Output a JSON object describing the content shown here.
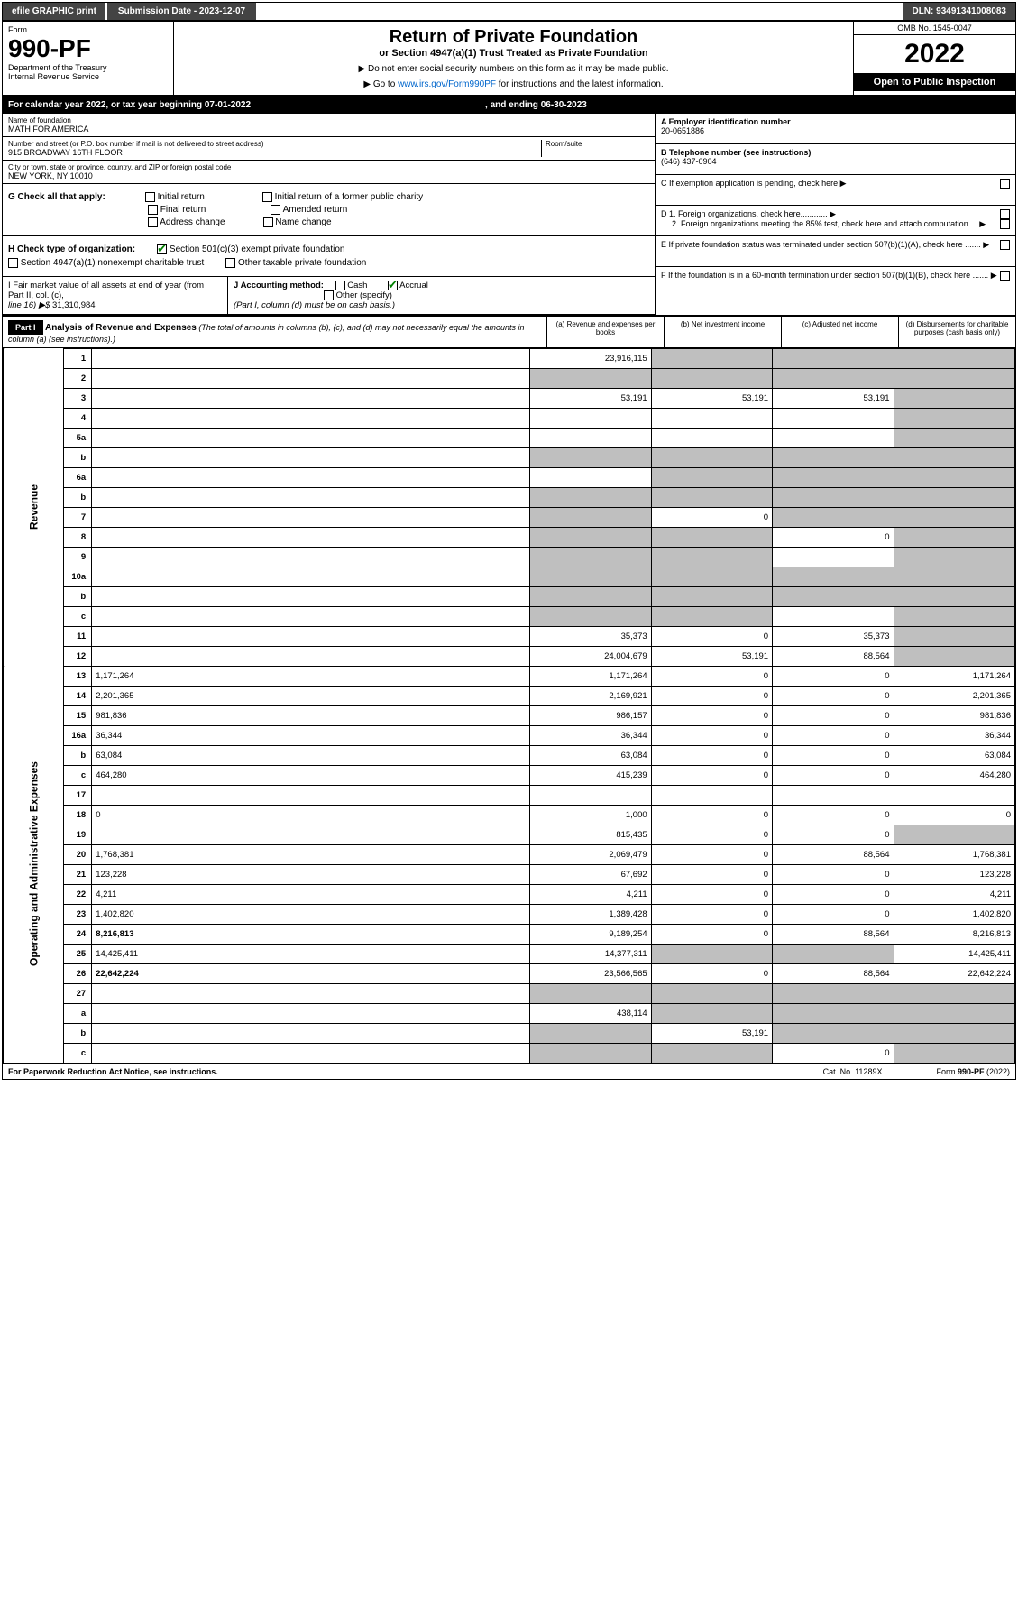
{
  "topbar": {
    "efile": "efile GRAPHIC print",
    "submission_label": "Submission Date - 2023-12-07",
    "dln": "DLN: 93491341008083"
  },
  "header": {
    "form_label": "Form",
    "form_number": "990-PF",
    "dept1": "Department of the Treasury",
    "dept2": "Internal Revenue Service",
    "title": "Return of Private Foundation",
    "subtitle": "or Section 4947(a)(1) Trust Treated as Private Foundation",
    "note1": "▶ Do not enter social security numbers on this form as it may be made public.",
    "note2_pre": "▶ Go to ",
    "note2_link": "www.irs.gov/Form990PF",
    "note2_post": " for instructions and the latest information.",
    "omb": "OMB No. 1545-0047",
    "year": "2022",
    "open": "Open to Public Inspection"
  },
  "calrow": {
    "text1": "For calendar year 2022, or tax year beginning 07-01-2022",
    "text2": ", and ending 06-30-2023"
  },
  "info": {
    "name_lbl": "Name of foundation",
    "name_val": "MATH FOR AMERICA",
    "addr_lbl": "Number and street (or P.O. box number if mail is not delivered to street address)",
    "addr_val": "915 BROADWAY 16TH FLOOR",
    "room_lbl": "Room/suite",
    "city_lbl": "City or town, state or province, country, and ZIP or foreign postal code",
    "city_val": "NEW YORK, NY  10010",
    "ein_lbl": "A Employer identification number",
    "ein_val": "20-0651886",
    "tel_lbl": "B Telephone number (see instructions)",
    "tel_val": "(646) 437-0904",
    "c_lbl": "C If exemption application is pending, check here",
    "d1_lbl": "D 1. Foreign organizations, check here............",
    "d2_lbl": "2. Foreign organizations meeting the 85% test, check here and attach computation ...",
    "e_lbl": "E If private foundation status was terminated under section 507(b)(1)(A), check here .......",
    "f_lbl": "F If the foundation is in a 60-month termination under section 507(b)(1)(B), check here .......",
    "g_lbl": "G Check all that apply:",
    "g_opts": [
      "Initial return",
      "Final return",
      "Address change",
      "Initial return of a former public charity",
      "Amended return",
      "Name change"
    ],
    "h_lbl": "H Check type of organization:",
    "h_opt1": "Section 501(c)(3) exempt private foundation",
    "h_opt2": "Section 4947(a)(1) nonexempt charitable trust",
    "h_opt3": "Other taxable private foundation",
    "i_lbl": "I Fair market value of all assets at end of year (from Part II, col. (c),",
    "i_line": "line 16) ▶$ ",
    "i_val": "31,310,984",
    "j_lbl": "J Accounting method:",
    "j_cash": "Cash",
    "j_accrual": "Accrual",
    "j_other": "Other (specify)",
    "j_note": "(Part I, column (d) must be on cash basis.)"
  },
  "part1": {
    "hdr": "Part I",
    "title": "Analysis of Revenue and Expenses",
    "note": " (The total of amounts in columns (b), (c), and (d) may not necessarily equal the amounts in column (a) (see instructions).)",
    "col_a": "(a) Revenue and expenses per books",
    "col_b": "(b) Net investment income",
    "col_c": "(c) Adjusted net income",
    "col_d": "(d) Disbursements for charitable purposes (cash basis only)"
  },
  "sections": {
    "revenue": "Revenue",
    "expenses": "Operating and Administrative Expenses"
  },
  "rows": [
    {
      "n": "1",
      "d": "",
      "a": "23,916,115",
      "b": "",
      "c": "",
      "grey": [
        "b",
        "c",
        "d"
      ]
    },
    {
      "n": "2",
      "d": "",
      "a": "",
      "b": "",
      "c": "",
      "grey": [
        "a",
        "b",
        "c",
        "d"
      ]
    },
    {
      "n": "3",
      "d": "",
      "a": "53,191",
      "b": "53,191",
      "c": "53,191",
      "grey": [
        "d"
      ]
    },
    {
      "n": "4",
      "d": "",
      "a": "",
      "b": "",
      "c": "",
      "grey": [
        "d"
      ]
    },
    {
      "n": "5a",
      "d": "",
      "a": "",
      "b": "",
      "c": "",
      "grey": [
        "d"
      ]
    },
    {
      "n": "b",
      "d": "",
      "a": "",
      "b": "",
      "c": "",
      "grey": [
        "a",
        "b",
        "c",
        "d"
      ]
    },
    {
      "n": "6a",
      "d": "",
      "a": "",
      "b": "",
      "c": "",
      "grey": [
        "b",
        "c",
        "d"
      ]
    },
    {
      "n": "b",
      "d": "",
      "a": "",
      "b": "",
      "c": "",
      "grey": [
        "a",
        "b",
        "c",
        "d"
      ]
    },
    {
      "n": "7",
      "d": "",
      "a": "",
      "b": "0",
      "c": "",
      "grey": [
        "a",
        "c",
        "d"
      ]
    },
    {
      "n": "8",
      "d": "",
      "a": "",
      "b": "",
      "c": "0",
      "grey": [
        "a",
        "b",
        "d"
      ]
    },
    {
      "n": "9",
      "d": "",
      "a": "",
      "b": "",
      "c": "",
      "grey": [
        "a",
        "b",
        "d"
      ]
    },
    {
      "n": "10a",
      "d": "",
      "a": "",
      "b": "",
      "c": "",
      "grey": [
        "a",
        "b",
        "c",
        "d"
      ]
    },
    {
      "n": "b",
      "d": "",
      "a": "",
      "b": "",
      "c": "",
      "grey": [
        "a",
        "b",
        "c",
        "d"
      ]
    },
    {
      "n": "c",
      "d": "",
      "a": "",
      "b": "",
      "c": "",
      "grey": [
        "a",
        "b",
        "d"
      ]
    },
    {
      "n": "11",
      "d": "",
      "a": "35,373",
      "b": "0",
      "c": "35,373",
      "grey": [
        "d"
      ]
    },
    {
      "n": "12",
      "d": "",
      "a": "24,004,679",
      "b": "53,191",
      "c": "88,564",
      "grey": [
        "d"
      ],
      "bold": true
    },
    {
      "n": "13",
      "d": "1,171,264",
      "a": "1,171,264",
      "b": "0",
      "c": "0"
    },
    {
      "n": "14",
      "d": "2,201,365",
      "a": "2,169,921",
      "b": "0",
      "c": "0"
    },
    {
      "n": "15",
      "d": "981,836",
      "a": "986,157",
      "b": "0",
      "c": "0"
    },
    {
      "n": "16a",
      "d": "36,344",
      "a": "36,344",
      "b": "0",
      "c": "0"
    },
    {
      "n": "b",
      "d": "63,084",
      "a": "63,084",
      "b": "0",
      "c": "0"
    },
    {
      "n": "c",
      "d": "464,280",
      "a": "415,239",
      "b": "0",
      "c": "0"
    },
    {
      "n": "17",
      "d": "",
      "a": "",
      "b": "",
      "c": ""
    },
    {
      "n": "18",
      "d": "0",
      "a": "1,000",
      "b": "0",
      "c": "0"
    },
    {
      "n": "19",
      "d": "",
      "a": "815,435",
      "b": "0",
      "c": "0",
      "grey": [
        "d"
      ]
    },
    {
      "n": "20",
      "d": "1,768,381",
      "a": "2,069,479",
      "b": "0",
      "c": "88,564"
    },
    {
      "n": "21",
      "d": "123,228",
      "a": "67,692",
      "b": "0",
      "c": "0"
    },
    {
      "n": "22",
      "d": "4,211",
      "a": "4,211",
      "b": "0",
      "c": "0"
    },
    {
      "n": "23",
      "d": "1,402,820",
      "a": "1,389,428",
      "b": "0",
      "c": "0"
    },
    {
      "n": "24",
      "d": "8,216,813",
      "a": "9,189,254",
      "b": "0",
      "c": "88,564",
      "bold": true
    },
    {
      "n": "25",
      "d": "14,425,411",
      "a": "14,377,311",
      "b": "",
      "c": "",
      "grey": [
        "b",
        "c"
      ]
    },
    {
      "n": "26",
      "d": "22,642,224",
      "a": "23,566,565",
      "b": "0",
      "c": "88,564",
      "bold": true
    },
    {
      "n": "27",
      "d": "",
      "a": "",
      "b": "",
      "c": "",
      "grey": [
        "a",
        "b",
        "c",
        "d"
      ]
    },
    {
      "n": "a",
      "d": "",
      "a": "438,114",
      "b": "",
      "c": "",
      "grey": [
        "b",
        "c",
        "d"
      ],
      "bold": true
    },
    {
      "n": "b",
      "d": "",
      "a": "",
      "b": "53,191",
      "c": "",
      "grey": [
        "a",
        "c",
        "d"
      ],
      "bold": true
    },
    {
      "n": "c",
      "d": "",
      "a": "",
      "b": "",
      "c": "0",
      "grey": [
        "a",
        "b",
        "d"
      ],
      "bold": true
    }
  ],
  "footer": {
    "left": "For Paperwork Reduction Act Notice, see instructions.",
    "mid": "Cat. No. 11289X",
    "right": "Form 990-PF (2022)"
  }
}
